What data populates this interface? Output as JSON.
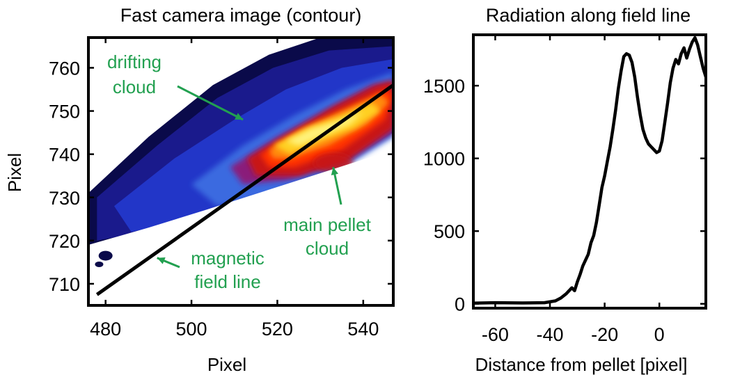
{
  "chart_data": [
    {
      "type": "heatmap",
      "title": "Fast camera image (contour)",
      "xlabel": "Pixel",
      "ylabel": "Pixel",
      "xlim": [
        476,
        547
      ],
      "ylim": [
        705,
        767
      ],
      "xticks": [
        480,
        500,
        520,
        540
      ],
      "yticks": [
        710,
        720,
        730,
        740,
        750,
        760
      ],
      "field_line": {
        "x": [
          478,
          547
        ],
        "y": [
          707.5,
          756
        ]
      },
      "colormap": [
        "#0a0a4a",
        "#1a1a8c",
        "#2236c8",
        "#3a6ae0",
        "#8a1a7a",
        "#c81818",
        "#ff3000",
        "#ff8a10",
        "#ffd020",
        "#fff27a"
      ],
      "annotations": [
        {
          "text_lines": [
            "drifting",
            "cloud"
          ],
          "arrow_to": [
            512,
            748
          ]
        },
        {
          "text_lines": [
            "main pellet",
            "cloud"
          ],
          "arrow_to": [
            533,
            737
          ]
        },
        {
          "text_lines": [
            "magnetic",
            "field line"
          ],
          "arrow_to": [
            492,
            716
          ]
        }
      ],
      "annotation_color": "#22a050"
    },
    {
      "type": "line",
      "title": "Radiation along field line",
      "xlabel": "Distance from pellet [pixel]",
      "ylabel": "",
      "xlim": [
        -68,
        17
      ],
      "ylim": [
        -30,
        1850
      ],
      "xticks": [
        -60,
        -40,
        -20,
        0
      ],
      "yticks": [
        0,
        500,
        1000,
        1500
      ],
      "grid": false,
      "series": [
        {
          "x": [
            -68,
            -60,
            -50,
            -42,
            -38,
            -36,
            -34,
            -32,
            -31,
            -30,
            -29,
            -28,
            -27,
            -26,
            -25,
            -24,
            -23,
            -22,
            -21,
            -20,
            -19,
            -18,
            -17,
            -16,
            -15,
            -14,
            -13,
            -12,
            -11,
            -10,
            -9,
            -8,
            -7,
            -6,
            -5,
            -4,
            -3,
            -2,
            -1,
            0,
            1,
            2,
            3,
            4,
            5,
            6,
            7,
            8,
            9,
            10,
            11,
            12,
            13,
            14,
            15,
            16,
            17
          ],
          "y": [
            5,
            8,
            6,
            8,
            20,
            40,
            70,
            110,
            90,
            150,
            200,
            260,
            300,
            340,
            420,
            470,
            560,
            680,
            800,
            880,
            980,
            1080,
            1200,
            1330,
            1480,
            1600,
            1700,
            1720,
            1710,
            1660,
            1560,
            1420,
            1300,
            1200,
            1140,
            1100,
            1080,
            1060,
            1040,
            1050,
            1120,
            1250,
            1380,
            1520,
            1620,
            1680,
            1650,
            1720,
            1760,
            1690,
            1750,
            1800,
            1830,
            1780,
            1700,
            1620,
            1560
          ]
        }
      ]
    }
  ]
}
